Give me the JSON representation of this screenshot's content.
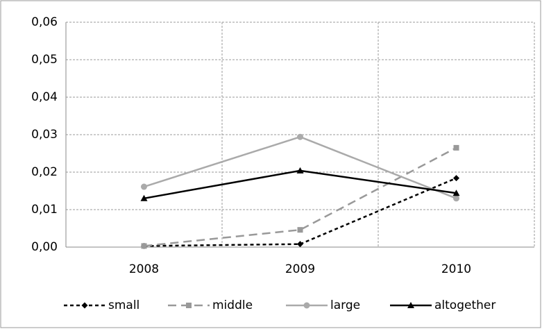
{
  "chart_data": {
    "type": "line",
    "categories": [
      "2008",
      "2009",
      "2010"
    ],
    "series": [
      {
        "name": "small",
        "color": "#000000",
        "dash": "5,4",
        "marker": "diamond",
        "values": [
          0.0003,
          0.0008,
          0.0184
        ]
      },
      {
        "name": "middle",
        "color": "#999999",
        "dash": "12,7",
        "marker": "square",
        "values": [
          0.0003,
          0.0046,
          0.0265
        ]
      },
      {
        "name": "large",
        "color": "#aaaaaa",
        "dash": "none",
        "marker": "circle",
        "values": [
          0.0161,
          0.0294,
          0.013
        ]
      },
      {
        "name": "altogether",
        "color": "#000000",
        "dash": "none",
        "marker": "triangle",
        "values": [
          0.013,
          0.0204,
          0.0144
        ]
      }
    ],
    "ylim": [
      0,
      0.06
    ],
    "yticks": [
      {
        "value": 0,
        "label": "0,00"
      },
      {
        "value": 0.01,
        "label": "0,01"
      },
      {
        "value": 0.02,
        "label": "0,02"
      },
      {
        "value": 0.03,
        "label": "0,03"
      },
      {
        "value": 0.04,
        "label": "0,04"
      },
      {
        "value": 0.05,
        "label": "0,05"
      },
      {
        "value": 0.06,
        "label": "0,06"
      }
    ],
    "grid": true,
    "legend": "bottom"
  }
}
